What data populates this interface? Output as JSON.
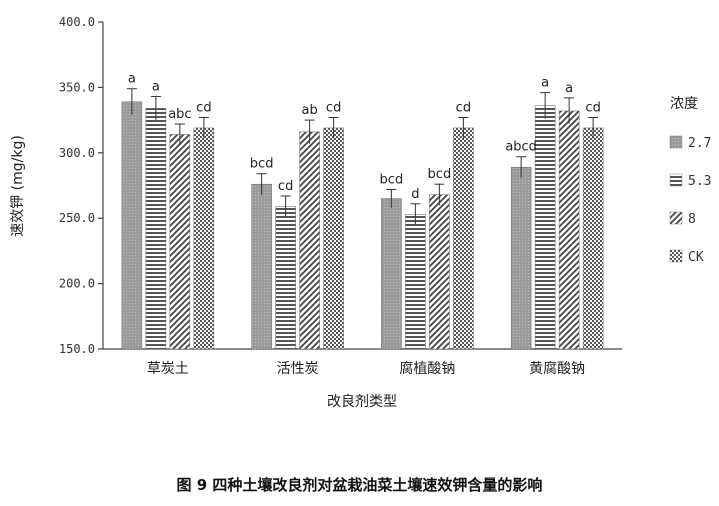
{
  "caption": "图 9 四种土壤改良剂对盆栽油菜土壤速效钾含量的影响",
  "chart_data": {
    "type": "bar",
    "xlabel": "改良剂类型",
    "ylabel": "速效钾 (mg/kg)",
    "ylim": [
      150.0,
      400.0
    ],
    "yticks": [
      "150.0",
      "200.0",
      "250.0",
      "300.0",
      "350.0",
      "400.0"
    ],
    "categories": [
      "草炭土",
      "活性炭",
      "腐植酸钠",
      "黄腐酸钠"
    ],
    "legend_title": "浓度",
    "legend_position": "right",
    "series": [
      {
        "name": "2.7",
        "pattern": "solid-gray",
        "values": [
          339,
          276,
          265,
          289
        ],
        "errors": [
          10,
          8,
          7,
          8
        ],
        "labels": [
          "a",
          "bcd",
          "bcd",
          "abcd"
        ]
      },
      {
        "name": "5.3",
        "pattern": "horizontal-lines",
        "values": [
          334,
          259,
          253,
          336
        ],
        "errors": [
          9,
          8,
          8,
          10
        ],
        "labels": [
          "a",
          "cd",
          "d",
          "a"
        ]
      },
      {
        "name": "8",
        "pattern": "diagonal-lines",
        "values": [
          314,
          316,
          268,
          332
        ],
        "errors": [
          8,
          9,
          8,
          10
        ],
        "labels": [
          "abc",
          "ab",
          "bcd",
          "a"
        ]
      },
      {
        "name": "CK",
        "pattern": "dots",
        "values": [
          319,
          319,
          319,
          319
        ],
        "errors": [
          8,
          8,
          8,
          8
        ],
        "labels": [
          "cd",
          "cd",
          "cd",
          "cd"
        ]
      }
    ]
  }
}
